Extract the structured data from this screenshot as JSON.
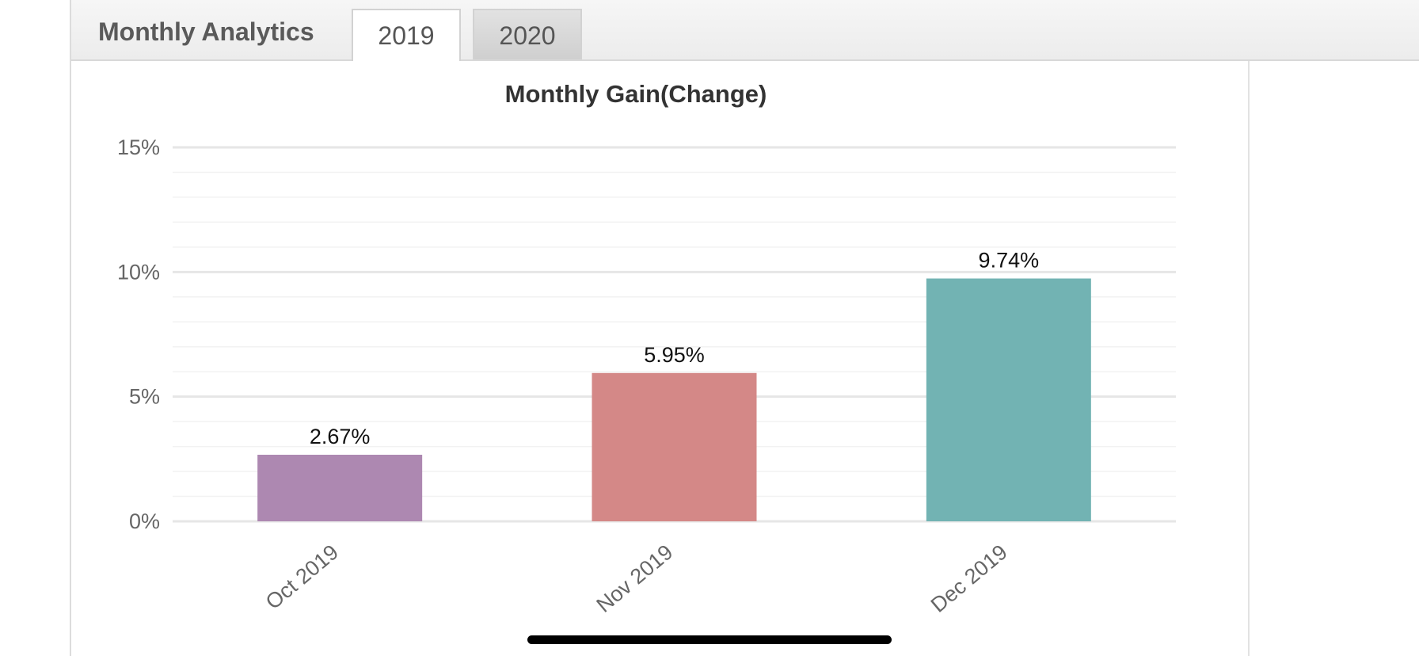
{
  "header": {
    "title": "Monthly Analytics",
    "tabs": [
      {
        "label": "2019",
        "active": true
      },
      {
        "label": "2020",
        "active": false
      }
    ]
  },
  "chart_data": {
    "type": "bar",
    "title": "Monthly Gain(Change)",
    "xlabel": "",
    "ylabel": "",
    "categories": [
      "Oct 2019",
      "Nov 2019",
      "Dec 2019"
    ],
    "values": [
      2.67,
      5.95,
      9.74
    ],
    "value_labels": [
      "2.67%",
      "5.95%",
      "9.74%"
    ],
    "colors": [
      "#ad88b1",
      "#d48887",
      "#72b3b3"
    ],
    "ylim": [
      0,
      15
    ],
    "yticks": [
      0,
      5,
      10,
      15
    ],
    "ytick_labels": [
      "0%",
      "5%",
      "10%",
      "15%"
    ],
    "grid": true,
    "minor_grid": true,
    "legend": "none"
  }
}
